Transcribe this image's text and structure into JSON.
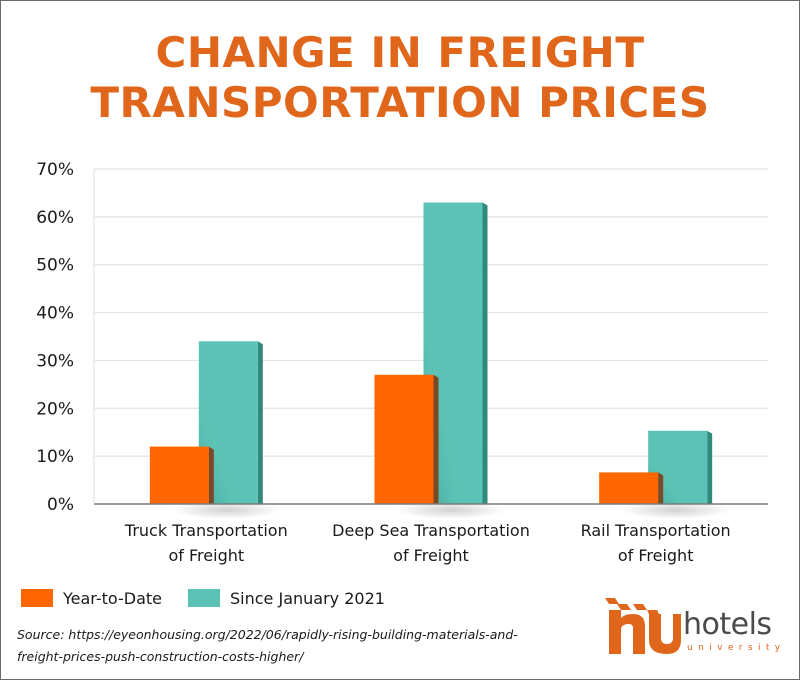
{
  "colors": {
    "title": "#e0661c",
    "year_to_date": "#ff6600",
    "year_to_date_side": "#7a4a28",
    "since_jan_2021": "#5bc2b5",
    "since_jan_2021_side": "#2f8a7c",
    "gridline": "#e3e3e3",
    "axis": "#7a7a7a"
  },
  "title_lines": [
    "CHANGE IN FREIGHT",
    "TRANSPORTATION PRICES"
  ],
  "category_labels": [
    [
      "Truck Transportation",
      "of Freight"
    ],
    [
      "Deep Sea Transportation",
      "of Freight"
    ],
    [
      "Rail Transportation",
      "of Freight"
    ]
  ],
  "legend": {
    "items": [
      {
        "label": "Year-to-Date",
        "color": "#ff6600"
      },
      {
        "label": "Since January 2021",
        "color": "#5bc2b5"
      }
    ]
  },
  "source": {
    "line1": "Source: https://eyeonhousing.org/2022/06/rapidly-rising-building-materials-and-",
    "line2": "freight-prices-push-construction-costs-higher/"
  },
  "logo": {
    "mark": "hu",
    "word": "hotels",
    "sub": "university"
  },
  "chart_data": {
    "type": "bar",
    "title": "CHANGE IN FREIGHT TRANSPORTATION PRICES",
    "xlabel": "",
    "ylabel": "",
    "categories": [
      "Truck Transportation of Freight",
      "Deep Sea Transportation of Freight",
      "Rail Transportation of Freight"
    ],
    "series": [
      {
        "name": "Year-to-Date",
        "values": [
          12,
          27,
          6.6
        ]
      },
      {
        "name": "Since January 2021",
        "values": [
          34,
          63,
          15.3
        ]
      }
    ],
    "ylim": [
      0,
      70
    ],
    "yticks": [
      0,
      10,
      20,
      30,
      40,
      50,
      60,
      70
    ],
    "ytick_labels": [
      "0%",
      "10%",
      "20%",
      "30%",
      "40%",
      "50%",
      "60%",
      "70%"
    ],
    "grid": true,
    "legend_position": "bottom-left"
  }
}
